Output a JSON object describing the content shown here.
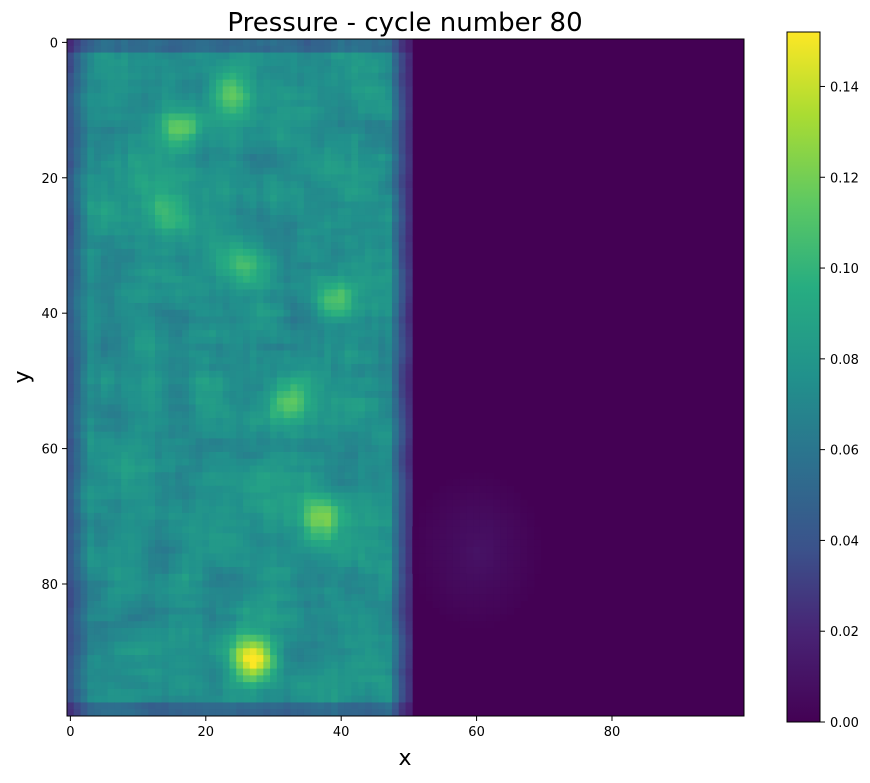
{
  "chart_data": {
    "type": "heatmap",
    "title": "Pressure - cycle number 80",
    "xlabel": "x",
    "ylabel": "y",
    "xlim": [
      -0.5,
      99.5
    ],
    "ylim": [
      99.5,
      -0.5
    ],
    "y_axis_inverted": true,
    "grid_shape": [
      100,
      100
    ],
    "x_ticks": [
      0,
      20,
      40,
      60,
      80
    ],
    "y_ticks": [
      0,
      20,
      40,
      60,
      80
    ],
    "colormap": "viridis",
    "colorbar": {
      "vmin": 0.0,
      "vmax": 0.152,
      "ticks": [
        0.0,
        0.02,
        0.04,
        0.06,
        0.08,
        0.1,
        0.12,
        0.14
      ],
      "tick_labels": [
        "0.00",
        "0.02",
        "0.04",
        "0.06",
        "0.08",
        "0.10",
        "0.12",
        "0.14"
      ]
    },
    "background_value": 0.0,
    "regions": [
      {
        "description": "high-pressure band",
        "x_range": [
          0,
          50
        ],
        "y_range": [
          0,
          99
        ],
        "typical_value": 0.075
      },
      {
        "description": "faint blob",
        "x_range": [
          50,
          70
        ],
        "y_range": [
          63,
          87
        ],
        "typical_value": 0.01
      }
    ],
    "hotspots": [
      {
        "x": 27,
        "y": 91,
        "value": 0.15
      },
      {
        "x": 24,
        "y": 8,
        "value": 0.12
      },
      {
        "x": 16,
        "y": 13,
        "value": 0.115
      },
      {
        "x": 33,
        "y": 53,
        "value": 0.115
      },
      {
        "x": 37,
        "y": 70,
        "value": 0.12
      },
      {
        "x": 25,
        "y": 33,
        "value": 0.11
      },
      {
        "x": 39,
        "y": 38,
        "value": 0.105
      },
      {
        "x": 15,
        "y": 25,
        "value": 0.1
      }
    ]
  }
}
